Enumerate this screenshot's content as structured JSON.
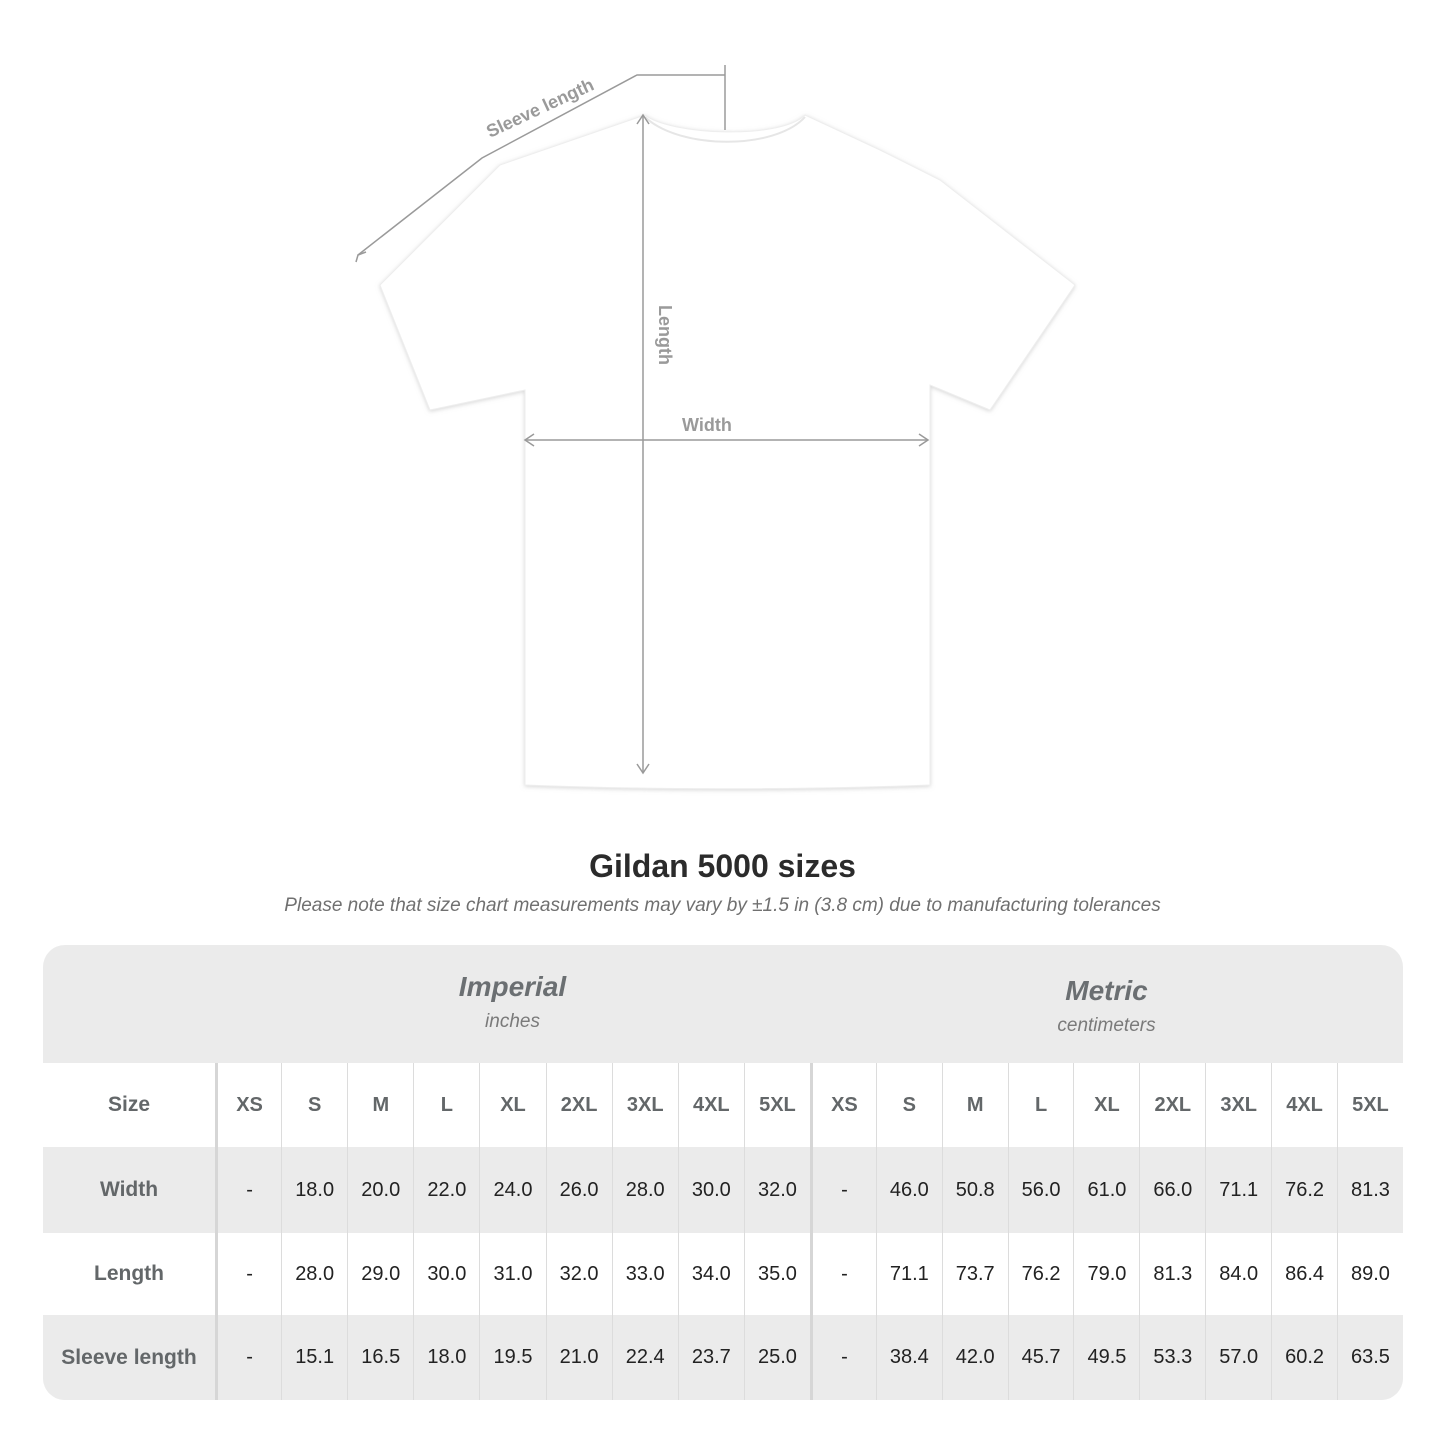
{
  "diagram": {
    "sleeve_label": "Sleeve length",
    "length_label": "Length",
    "width_label": "Width",
    "shirt_color": "#ffffff",
    "line_color": "#9a9a9a"
  },
  "title": "Gildan 5000 sizes",
  "subtitle": "Please note that size chart measurements may vary by ±1.5 in (3.8 cm) due to manufacturing tolerances",
  "table": {
    "imperial": {
      "name": "Imperial",
      "unit": "inches"
    },
    "metric": {
      "name": "Metric",
      "unit": "centimeters"
    },
    "size_label": "Size",
    "sizes": [
      "XS",
      "S",
      "M",
      "L",
      "XL",
      "2XL",
      "3XL",
      "4XL",
      "5XL"
    ],
    "rows": [
      {
        "label": "Width",
        "imperial": [
          "-",
          "18.0",
          "20.0",
          "22.0",
          "24.0",
          "26.0",
          "28.0",
          "30.0",
          "32.0"
        ],
        "metric": [
          "-",
          "46.0",
          "50.8",
          "56.0",
          "61.0",
          "66.0",
          "71.1",
          "76.2",
          "81.3"
        ]
      },
      {
        "label": "Length",
        "imperial": [
          "-",
          "28.0",
          "29.0",
          "30.0",
          "31.0",
          "32.0",
          "33.0",
          "34.0",
          "35.0"
        ],
        "metric": [
          "-",
          "71.1",
          "73.7",
          "76.2",
          "79.0",
          "81.3",
          "84.0",
          "86.4",
          "89.0"
        ]
      },
      {
        "label": "Sleeve length",
        "imperial": [
          "-",
          "15.1",
          "16.5",
          "18.0",
          "19.5",
          "21.0",
          "22.4",
          "23.7",
          "25.0"
        ],
        "metric": [
          "-",
          "38.4",
          "42.0",
          "45.7",
          "49.5",
          "53.3",
          "57.0",
          "60.2",
          "63.5"
        ]
      }
    ]
  }
}
